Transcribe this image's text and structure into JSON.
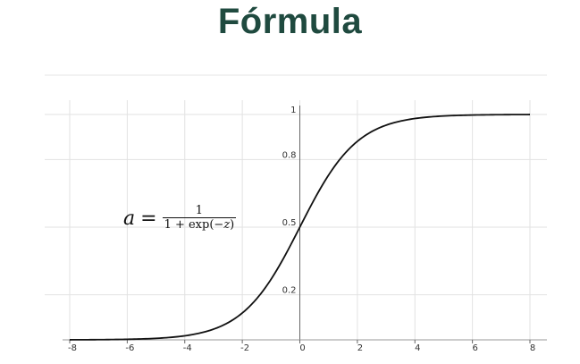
{
  "title": "Fórmula",
  "formula": {
    "lhs": "a",
    "equals": "=",
    "numerator": "1",
    "denominator_left": "1 + exp(−",
    "denominator_var": "z",
    "denominator_right": ")"
  },
  "chart_data": {
    "type": "line",
    "title": "",
    "xlabel": "",
    "ylabel": "",
    "xlim": [
      -8,
      8
    ],
    "ylim": [
      0,
      1
    ],
    "x_ticks": [
      -8,
      -6,
      -4,
      -2,
      0,
      2,
      4,
      6,
      8
    ],
    "x_tick_labels": [
      "-8",
      "-6",
      "-4",
      "-2",
      "0",
      "2",
      "4",
      "6",
      "8"
    ],
    "y_ticks": [
      0.2,
      0.5,
      0.8,
      1
    ],
    "y_tick_labels": [
      "0.2",
      "0.5",
      "0.8",
      "1"
    ],
    "grid": true,
    "series": [
      {
        "function": "sigmoid",
        "color": "#111111",
        "x": [
          -8,
          -7,
          -6,
          -5,
          -4,
          -3,
          -2,
          -1,
          0,
          1,
          2,
          3,
          4,
          5,
          6,
          7,
          8
        ],
        "y": [
          0.0003,
          0.0009,
          0.0025,
          0.0067,
          0.018,
          0.047,
          0.119,
          0.269,
          0.5,
          0.731,
          0.881,
          0.953,
          0.982,
          0.9933,
          0.9975,
          0.9991,
          0.9997
        ]
      }
    ]
  }
}
